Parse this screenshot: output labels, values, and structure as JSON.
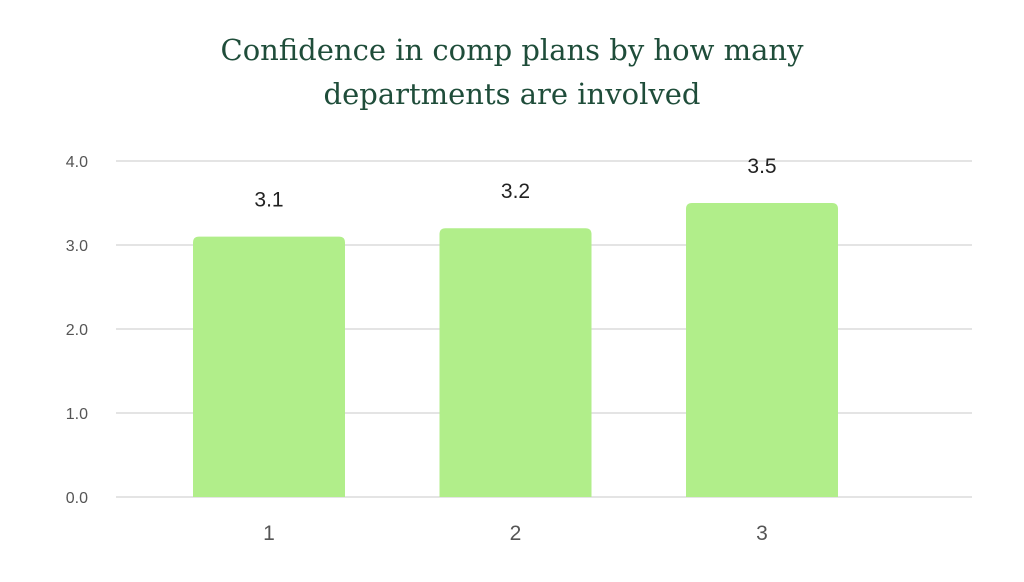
{
  "chart_data": {
    "type": "bar",
    "title_lines": [
      "Confidence in comp plans by how many",
      "departments are involved"
    ],
    "categories": [
      "1",
      "2",
      "3"
    ],
    "values": [
      3.1,
      3.2,
      3.5
    ],
    "data_labels": [
      "3.1",
      "3.2",
      "3.5"
    ],
    "y_ticks": [
      "0.0",
      "1.0",
      "2.0",
      "3.0",
      "4.0"
    ],
    "ylim": [
      0,
      4
    ],
    "grid": true,
    "colors": {
      "bar": "#b1ee8a",
      "title": "#1f4d3a",
      "grid": "#dcdcdc",
      "tick_text": "#555555",
      "label_text": "#222222"
    }
  }
}
